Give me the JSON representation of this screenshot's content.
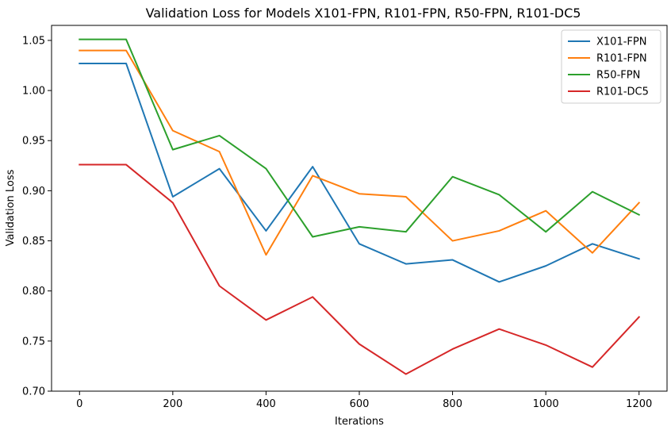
{
  "chart_data": {
    "type": "line",
    "title": "Validation Loss for Models X101-FPN, R101-FPN, R50-FPN, R101-DC5",
    "xlabel": "Iterations",
    "ylabel": "Validation Loss",
    "x": [
      0,
      100,
      200,
      300,
      400,
      500,
      600,
      700,
      800,
      900,
      1000,
      1100,
      1200
    ],
    "xlim": [
      -60,
      1260
    ],
    "ylim": [
      0.7,
      1.065
    ],
    "xticks": [
      0,
      200,
      400,
      600,
      800,
      1000,
      1200
    ],
    "yticks": [
      0.7,
      0.75,
      0.8,
      0.85,
      0.9,
      0.95,
      1.0,
      1.05
    ],
    "xtick_labels": [
      "0",
      "200",
      "400",
      "600",
      "800",
      "1000",
      "1200"
    ],
    "ytick_labels": [
      "0.70",
      "0.75",
      "0.80",
      "0.85",
      "0.90",
      "0.95",
      "1.00",
      "1.05"
    ],
    "grid": false,
    "legend": "top-right",
    "series": [
      {
        "name": "X101-FPN",
        "color": "#1f77b4",
        "values": [
          1.027,
          1.027,
          0.894,
          0.922,
          0.86,
          0.924,
          0.847,
          0.827,
          0.831,
          0.809,
          0.825,
          0.847,
          0.832
        ]
      },
      {
        "name": "R101-FPN",
        "color": "#ff7f0e",
        "values": [
          1.04,
          1.04,
          0.96,
          0.939,
          0.836,
          0.915,
          0.897,
          0.894,
          0.85,
          0.86,
          0.88,
          0.838,
          0.888
        ]
      },
      {
        "name": "R50-FPN",
        "color": "#2ca02c",
        "values": [
          1.051,
          1.051,
          0.941,
          0.955,
          0.922,
          0.854,
          0.864,
          0.859,
          0.914,
          0.896,
          0.859,
          0.899,
          0.876
        ]
      },
      {
        "name": "R101-DC5",
        "color": "#d62728",
        "values": [
          0.926,
          0.926,
          0.888,
          0.805,
          0.771,
          0.794,
          0.747,
          0.717,
          0.742,
          0.762,
          0.746,
          0.724,
          0.774
        ]
      }
    ]
  }
}
